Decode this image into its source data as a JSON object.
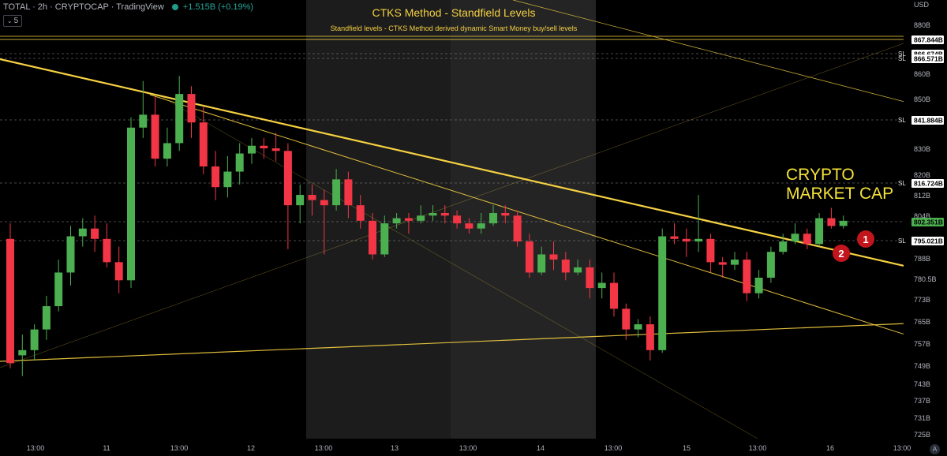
{
  "header": {
    "symbol_line": "TOTAL · 2h · CRYPTOCAP · TradingView",
    "change": "+1.515B (+0.19%)",
    "interval_value": "5"
  },
  "indicator": {
    "title": "CTKS Method - Standfield Levels",
    "subtitle": "Standfield levels - CTKS Method derived dynamic Smart Money buy/sell levels"
  },
  "annotation": {
    "line1": "CRYPTO",
    "line2": "MARKET CAP"
  },
  "axis": {
    "currency": "USD",
    "auto_label": "A"
  },
  "colors": {
    "up": "#4caf50",
    "down": "#f23645",
    "level": "#f5d142",
    "shade": "#1c1c1c"
  },
  "chart_data": {
    "type": "candlestick",
    "x_ticks": [
      "13:00",
      "11",
      "13:00",
      "12",
      "13:00",
      "13",
      "13:00",
      "14",
      "13:00",
      "15",
      "13:00",
      "16",
      "13:00"
    ],
    "y_ticks": [
      "880B",
      "860B",
      "850B",
      "830B",
      "820B",
      "812B",
      "804B",
      "788B",
      "780.5B",
      "773B",
      "765B",
      "757B",
      "749B",
      "743B",
      "737B",
      "731B",
      "725B"
    ],
    "price_labels": [
      {
        "text": "867.844B",
        "sl": false
      },
      {
        "text": "866.674B",
        "sl": true
      },
      {
        "text": "866.571B",
        "sl": true
      },
      {
        "text": "841.884B",
        "sl": true
      },
      {
        "text": "816.724B",
        "sl": true
      },
      {
        "text": "802.351B",
        "sl": false,
        "current": true
      },
      {
        "text": "795.021B",
        "sl": true
      }
    ],
    "candles": [
      {
        "o": 795,
        "c": 747,
        "h": 801,
        "l": 745
      },
      {
        "o": 750,
        "c": 752,
        "h": 758,
        "l": 742
      },
      {
        "o": 752,
        "c": 760,
        "h": 762,
        "l": 748
      },
      {
        "o": 760,
        "c": 769,
        "h": 773,
        "l": 756
      },
      {
        "o": 769,
        "c": 782,
        "h": 787,
        "l": 767
      },
      {
        "o": 782,
        "c": 796,
        "h": 800,
        "l": 777
      },
      {
        "o": 796,
        "c": 799,
        "h": 803,
        "l": 792
      },
      {
        "o": 799,
        "c": 795,
        "h": 804,
        "l": 790
      },
      {
        "o": 795,
        "c": 786,
        "h": 801,
        "l": 784
      },
      {
        "o": 786,
        "c": 779,
        "h": 792,
        "l": 774
      },
      {
        "o": 779,
        "c": 838,
        "h": 842,
        "l": 776
      },
      {
        "o": 838,
        "c": 843,
        "h": 856,
        "l": 834
      },
      {
        "o": 843,
        "c": 826,
        "h": 850,
        "l": 823
      },
      {
        "o": 826,
        "c": 832,
        "h": 838,
        "l": 823
      },
      {
        "o": 832,
        "c": 851,
        "h": 858,
        "l": 829
      },
      {
        "o": 851,
        "c": 840,
        "h": 854,
        "l": 834
      },
      {
        "o": 840,
        "c": 823,
        "h": 846,
        "l": 820
      },
      {
        "o": 823,
        "c": 815,
        "h": 829,
        "l": 810
      },
      {
        "o": 815,
        "c": 821,
        "h": 827,
        "l": 811
      },
      {
        "o": 821,
        "c": 828,
        "h": 832,
        "l": 816
      },
      {
        "o": 828,
        "c": 831,
        "h": 834,
        "l": 824
      },
      {
        "o": 831,
        "c": 830,
        "h": 834,
        "l": 826
      },
      {
        "o": 830,
        "c": 829,
        "h": 836,
        "l": 825
      },
      {
        "o": 829,
        "c": 808,
        "h": 832,
        "l": 791
      },
      {
        "o": 808,
        "c": 812,
        "h": 816,
        "l": 801
      },
      {
        "o": 812,
        "c": 810,
        "h": 816,
        "l": 804
      },
      {
        "o": 810,
        "c": 808,
        "h": 814,
        "l": 789
      },
      {
        "o": 808,
        "c": 818,
        "h": 822,
        "l": 806
      },
      {
        "o": 818,
        "c": 808,
        "h": 821,
        "l": 803
      },
      {
        "o": 808,
        "c": 802,
        "h": 812,
        "l": 799
      },
      {
        "o": 802,
        "c": 789,
        "h": 805,
        "l": 787
      },
      {
        "o": 789,
        "c": 801,
        "h": 804,
        "l": 788
      },
      {
        "o": 801,
        "c": 803,
        "h": 805,
        "l": 799
      },
      {
        "o": 803,
        "c": 802,
        "h": 805,
        "l": 797
      },
      {
        "o": 802,
        "c": 804,
        "h": 808,
        "l": 801
      },
      {
        "o": 804,
        "c": 805,
        "h": 808,
        "l": 802
      },
      {
        "o": 805,
        "c": 804,
        "h": 808,
        "l": 801
      },
      {
        "o": 804,
        "c": 801,
        "h": 806,
        "l": 799
      },
      {
        "o": 801,
        "c": 799,
        "h": 803,
        "l": 797
      },
      {
        "o": 799,
        "c": 801,
        "h": 805,
        "l": 797
      },
      {
        "o": 801,
        "c": 805,
        "h": 808,
        "l": 800
      },
      {
        "o": 805,
        "c": 804,
        "h": 808,
        "l": 801
      },
      {
        "o": 804,
        "c": 794,
        "h": 806,
        "l": 792
      },
      {
        "o": 794,
        "c": 782,
        "h": 797,
        "l": 780
      },
      {
        "o": 782,
        "c": 789,
        "h": 792,
        "l": 781
      },
      {
        "o": 789,
        "c": 787,
        "h": 794,
        "l": 783
      },
      {
        "o": 787,
        "c": 782,
        "h": 790,
        "l": 779
      },
      {
        "o": 782,
        "c": 784,
        "h": 787,
        "l": 781
      },
      {
        "o": 784,
        "c": 776,
        "h": 787,
        "l": 772
      },
      {
        "o": 776,
        "c": 778,
        "h": 782,
        "l": 772
      },
      {
        "o": 778,
        "c": 768,
        "h": 782,
        "l": 765
      },
      {
        "o": 768,
        "c": 760,
        "h": 770,
        "l": 756
      },
      {
        "o": 760,
        "c": 762,
        "h": 764,
        "l": 757
      },
      {
        "o": 762,
        "c": 752,
        "h": 765,
        "l": 748
      },
      {
        "o": 752,
        "c": 796,
        "h": 799,
        "l": 751
      },
      {
        "o": 796,
        "c": 795,
        "h": 801,
        "l": 793
      },
      {
        "o": 795,
        "c": 794,
        "h": 799,
        "l": 788
      },
      {
        "o": 794,
        "c": 795,
        "h": 812,
        "l": 790
      },
      {
        "o": 795,
        "c": 786,
        "h": 797,
        "l": 782
      },
      {
        "o": 786,
        "c": 785,
        "h": 788,
        "l": 780
      },
      {
        "o": 785,
        "c": 787,
        "h": 790,
        "l": 783
      },
      {
        "o": 787,
        "c": 774,
        "h": 790,
        "l": 771
      },
      {
        "o": 774,
        "c": 780,
        "h": 783,
        "l": 772
      },
      {
        "o": 780,
        "c": 790,
        "h": 792,
        "l": 778
      },
      {
        "o": 790,
        "c": 794,
        "h": 797,
        "l": 789
      },
      {
        "o": 794,
        "c": 797,
        "h": 801,
        "l": 793
      },
      {
        "o": 797,
        "c": 793,
        "h": 799,
        "l": 791
      },
      {
        "o": 793,
        "c": 803,
        "h": 805,
        "l": 792
      },
      {
        "o": 803,
        "c": 800,
        "h": 807,
        "l": 799
      },
      {
        "o": 800,
        "c": 802,
        "h": 804,
        "l": 799
      }
    ]
  }
}
